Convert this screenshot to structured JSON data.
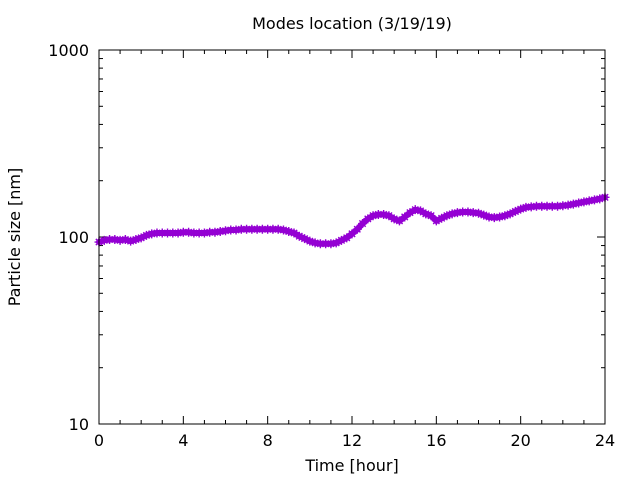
{
  "chart_data": {
    "type": "line",
    "title": "Modes location (3/19/19)",
    "xlabel": "Time [hour]",
    "ylabel": "Particle size [nm]",
    "xlim": [
      0,
      24
    ],
    "ylim": [
      10,
      1000
    ],
    "y_scale": "log",
    "x_ticks": [
      "0",
      "4",
      "8",
      "12",
      "16",
      "20",
      "24"
    ],
    "y_ticks": [
      "10",
      "100",
      "1000"
    ],
    "grid": false,
    "legend": "none",
    "series": [
      {
        "color": "#9400d3",
        "marker": "star",
        "x": [
          0,
          0.25,
          0.5,
          0.75,
          1.0,
          1.25,
          1.5,
          1.75,
          2.0,
          2.25,
          2.5,
          2.75,
          3.0,
          3.25,
          3.5,
          3.75,
          4.0,
          4.25,
          4.5,
          4.75,
          5.0,
          5.25,
          5.5,
          5.75,
          6.0,
          6.25,
          6.5,
          6.75,
          7.0,
          7.25,
          7.5,
          7.75,
          8.0,
          8.25,
          8.5,
          8.75,
          9.0,
          9.25,
          9.5,
          9.75,
          10.0,
          10.25,
          10.5,
          10.75,
          11.0,
          11.25,
          11.5,
          11.75,
          12.0,
          12.25,
          12.5,
          12.75,
          13.0,
          13.25,
          13.5,
          13.75,
          14.0,
          14.25,
          14.5,
          14.75,
          15.0,
          15.25,
          15.5,
          15.75,
          16.0,
          16.25,
          16.5,
          16.75,
          17.0,
          17.25,
          17.5,
          17.75,
          18.0,
          18.25,
          18.5,
          18.75,
          19.0,
          19.25,
          19.5,
          19.75,
          20.0,
          20.25,
          20.5,
          20.75,
          21.0,
          21.25,
          21.5,
          21.75,
          22.0,
          22.25,
          22.5,
          22.75,
          23.0,
          23.25,
          23.5,
          23.75,
          24.0
        ],
        "y": [
          94,
          96,
          97,
          97,
          96,
          97,
          95,
          97,
          99,
          102,
          104,
          105,
          105,
          105,
          105,
          105,
          106,
          106,
          105,
          105,
          105,
          106,
          106,
          107,
          108,
          109,
          109,
          110,
          110,
          110,
          110,
          110,
          110,
          110,
          110,
          109,
          107,
          105,
          101,
          98,
          95,
          93,
          92,
          92,
          92,
          93,
          96,
          99,
          104,
          110,
          118,
          125,
          130,
          132,
          132,
          130,
          125,
          122,
          128,
          135,
          140,
          138,
          133,
          130,
          122,
          126,
          130,
          133,
          135,
          136,
          136,
          135,
          134,
          131,
          128,
          127,
          128,
          130,
          133,
          137,
          141,
          144,
          145,
          146,
          146,
          146,
          146,
          146,
          147,
          148,
          150,
          152,
          154,
          156,
          158,
          160,
          163
        ]
      }
    ]
  }
}
